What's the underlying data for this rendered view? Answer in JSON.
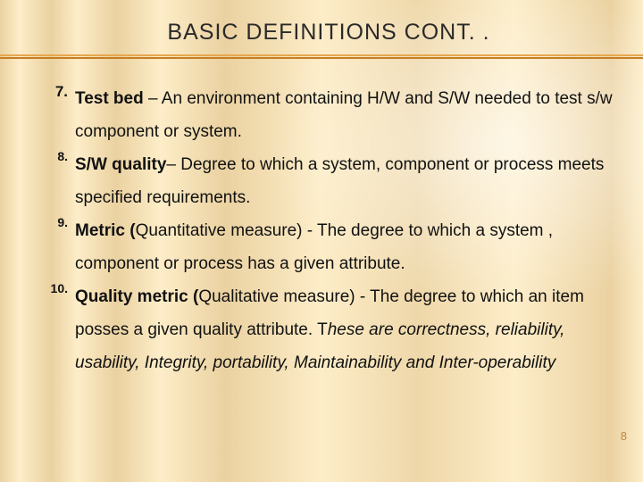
{
  "title": "BASIC  DEFINITIONS CONT. .",
  "rule_top_color": "#e6a64d",
  "rule_bottom_color": "#c77e20",
  "background_base": "#fdedc8",
  "pagenum_color": "#c08a3a",
  "text_color": "#111111",
  "font_size_title": 25,
  "font_size_body": 19,
  "line_height_body": 1.95,
  "items": [
    {
      "num": "7.",
      "num_class": "normal",
      "term": "Test bed ",
      "rest": "– An environment containing H/W and S/W needed to test s/w component or system.",
      "italic_tail": ""
    },
    {
      "num": "8.",
      "num_class": "small",
      "term": "S/W quality",
      "rest": "– Degree to which a system, component or process meets specified requirements.",
      "italic_tail": ""
    },
    {
      "num": "9.",
      "num_class": "small",
      "term": "Metric (",
      "rest": "Quantitative measure) - The degree to which a system , component or process has a given attribute.",
      "italic_tail": ""
    },
    {
      "num": "10.",
      "num_class": "small",
      "term": "Quality metric (",
      "rest": "Qualitative measure) - The degree to which an item posses a given quality attribute. T",
      "italic_tail": "hese are correctness, reliability, usability, Integrity, portability, Maintainability and Inter-operability"
    }
  ],
  "page_number": "8"
}
